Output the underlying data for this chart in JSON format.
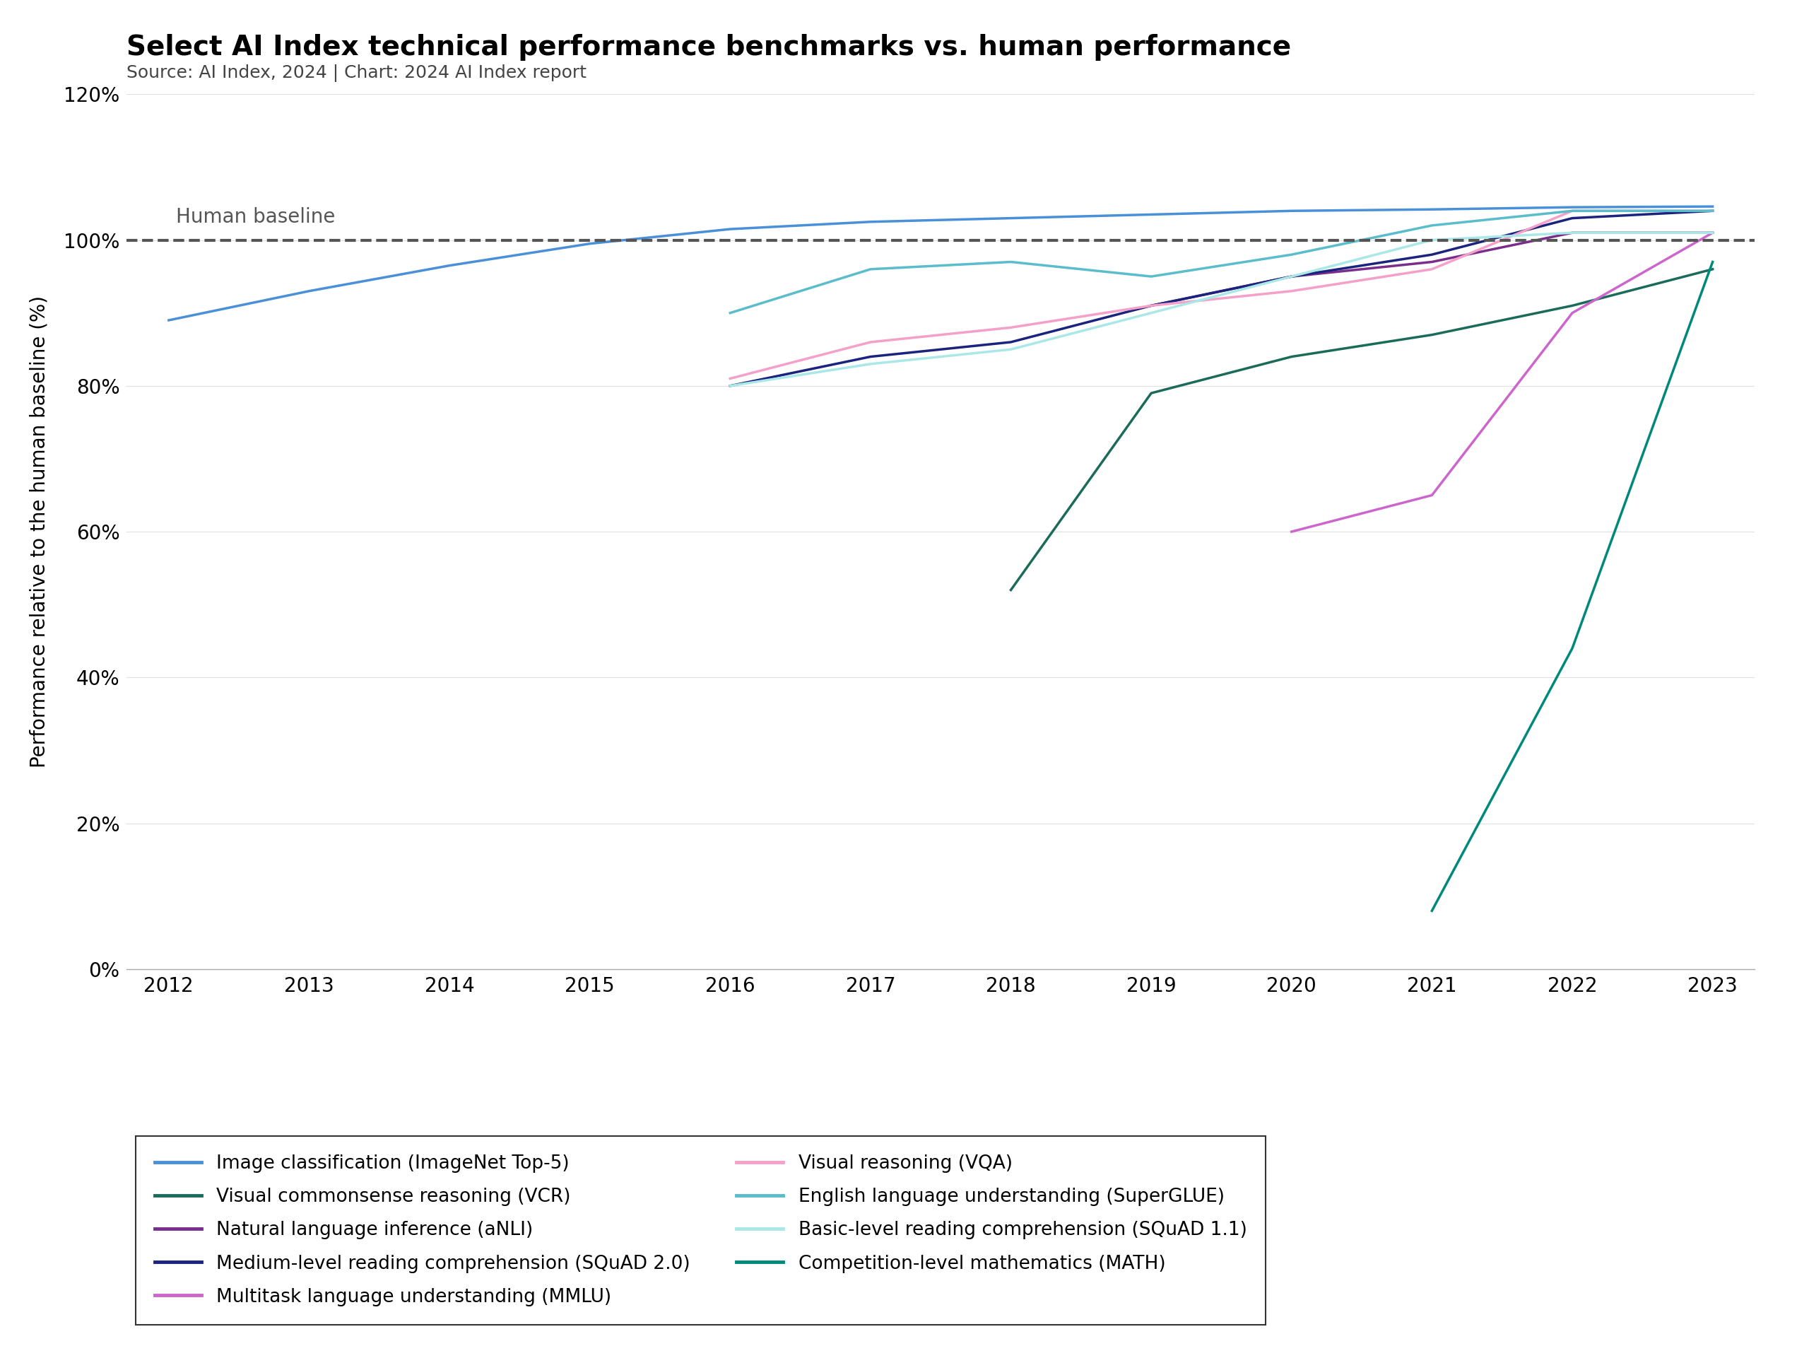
{
  "title": "Select AI Index technical performance benchmarks vs. human performance",
  "subtitle": "Source: AI Index, 2024 | Chart: 2024 AI Index report",
  "ylabel": "Performance relative to the human baseline (%)",
  "ylim": [
    0,
    120
  ],
  "xlim": [
    2012,
    2023
  ],
  "yticks": [
    0,
    20,
    40,
    60,
    80,
    100,
    120
  ],
  "xticks": [
    2012,
    2013,
    2014,
    2015,
    2016,
    2017,
    2018,
    2019,
    2020,
    2021,
    2022,
    2023
  ],
  "human_baseline": 100,
  "background_color": "#ffffff",
  "series": [
    {
      "name": "Image classification (ImageNet Top-5)",
      "color": "#4a90d9",
      "linewidth": 2.5,
      "data": [
        [
          2012,
          89
        ],
        [
          2013,
          93
        ],
        [
          2014,
          96.5
        ],
        [
          2015,
          99.5
        ],
        [
          2016,
          101.5
        ],
        [
          2017,
          102.5
        ],
        [
          2018,
          103
        ],
        [
          2019,
          103.5
        ],
        [
          2020,
          104
        ],
        [
          2021,
          104.2
        ],
        [
          2022,
          104.5
        ],
        [
          2023,
          104.6
        ]
      ]
    },
    {
      "name": "Visual commonsense reasoning (VCR)",
      "color": "#1a6b5a",
      "linewidth": 2.5,
      "data": [
        [
          2018,
          52
        ],
        [
          2019,
          79
        ],
        [
          2020,
          84
        ],
        [
          2021,
          87
        ],
        [
          2022,
          91
        ],
        [
          2023,
          96
        ]
      ]
    },
    {
      "name": "Natural language inference (aNLI)",
      "color": "#7b2d8b",
      "linewidth": 2.5,
      "data": [
        [
          2019,
          91
        ],
        [
          2020,
          95
        ],
        [
          2021,
          97
        ],
        [
          2022,
          101
        ],
        [
          2023,
          101
        ]
      ]
    },
    {
      "name": "Medium-level reading comprehension (SQuAD 2.0)",
      "color": "#1a237e",
      "linewidth": 2.5,
      "data": [
        [
          2016,
          80
        ],
        [
          2017,
          84
        ],
        [
          2018,
          86
        ],
        [
          2019,
          91
        ],
        [
          2020,
          95
        ],
        [
          2021,
          98
        ],
        [
          2022,
          103
        ],
        [
          2023,
          104
        ]
      ]
    },
    {
      "name": "Multitask language understanding (MMLU)",
      "color": "#cc66cc",
      "linewidth": 2.5,
      "data": [
        [
          2020,
          60
        ],
        [
          2021,
          65
        ],
        [
          2022,
          90
        ],
        [
          2023,
          101
        ]
      ]
    },
    {
      "name": "Visual reasoning (VQA)",
      "color": "#f4a0c8",
      "linewidth": 2.5,
      "data": [
        [
          2016,
          81
        ],
        [
          2017,
          86
        ],
        [
          2018,
          88
        ],
        [
          2019,
          91
        ],
        [
          2020,
          93
        ],
        [
          2021,
          96
        ],
        [
          2022,
          104
        ],
        [
          2023,
          104
        ]
      ]
    },
    {
      "name": "English language understanding (SuperGLUE)",
      "color": "#5bbccc",
      "linewidth": 2.5,
      "data": [
        [
          2016,
          90
        ],
        [
          2017,
          96
        ],
        [
          2018,
          97
        ],
        [
          2019,
          95
        ],
        [
          2020,
          98
        ],
        [
          2021,
          102
        ],
        [
          2022,
          104
        ],
        [
          2023,
          104
        ]
      ]
    },
    {
      "name": "Basic-level reading comprehension (SQuAD 1.1)",
      "color": "#aae8e8",
      "linewidth": 2.5,
      "data": [
        [
          2016,
          80
        ],
        [
          2017,
          83
        ],
        [
          2018,
          85
        ],
        [
          2019,
          90
        ],
        [
          2020,
          95
        ],
        [
          2021,
          100
        ],
        [
          2022,
          101
        ],
        [
          2023,
          101
        ]
      ]
    },
    {
      "name": "Competition-level mathematics (MATH)",
      "color": "#00897b",
      "linewidth": 2.5,
      "data": [
        [
          2021,
          8
        ],
        [
          2022,
          44
        ],
        [
          2023,
          97
        ]
      ]
    }
  ],
  "legend_left": [
    [
      "Image classification (ImageNet Top-5)",
      "#4a90d9"
    ],
    [
      "Visual commonsense reasoning (VCR)",
      "#1a6b5a"
    ],
    [
      "Natural language inference (aNLI)",
      "#7b2d8b"
    ],
    [
      "Medium-level reading comprehension (SQuAD 2.0)",
      "#1a237e"
    ],
    [
      "Multitask language understanding (MMLU)",
      "#cc66cc"
    ]
  ],
  "legend_right": [
    [
      "Visual reasoning (VQA)",
      "#f4a0c8"
    ],
    [
      "English language understanding (SuperGLUE)",
      "#5bbccc"
    ],
    [
      "Basic-level reading comprehension (SQuAD 1.1)",
      "#aae8e8"
    ],
    [
      "Competition-level mathematics (MATH)",
      "#00897b"
    ]
  ]
}
